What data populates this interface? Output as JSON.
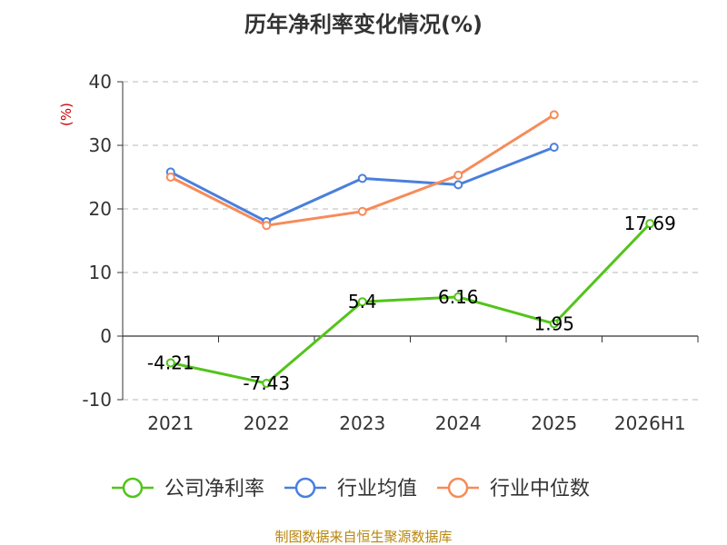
{
  "chart_data": {
    "type": "line",
    "title": "历年净利率变化情况(%)",
    "ylabel": "(%)",
    "categories": [
      "2021",
      "2022",
      "2023",
      "2024",
      "2025",
      "2026H1"
    ],
    "ylim": [
      -10,
      40
    ],
    "yticks": [
      -10,
      0,
      10,
      20,
      30,
      40
    ],
    "grid": true,
    "legend_position": "bottom",
    "series": [
      {
        "name": "公司净利率",
        "color": "#52c41a",
        "values": [
          -4.21,
          -7.43,
          5.4,
          6.16,
          1.95,
          17.69
        ],
        "labels": [
          "-4.21",
          "-7.43",
          "5.4",
          "6.16",
          "1.95",
          "17.69"
        ]
      },
      {
        "name": "行业均值",
        "color": "#4a7fdc",
        "values": [
          25.8,
          18.0,
          24.8,
          23.8,
          29.7,
          null
        ]
      },
      {
        "name": "行业中位数",
        "color": "#f78b5a",
        "values": [
          25.0,
          17.4,
          19.6,
          25.3,
          34.8,
          null
        ]
      }
    ]
  },
  "footer": {
    "source": "制图数据来自恒生聚源数据库"
  }
}
